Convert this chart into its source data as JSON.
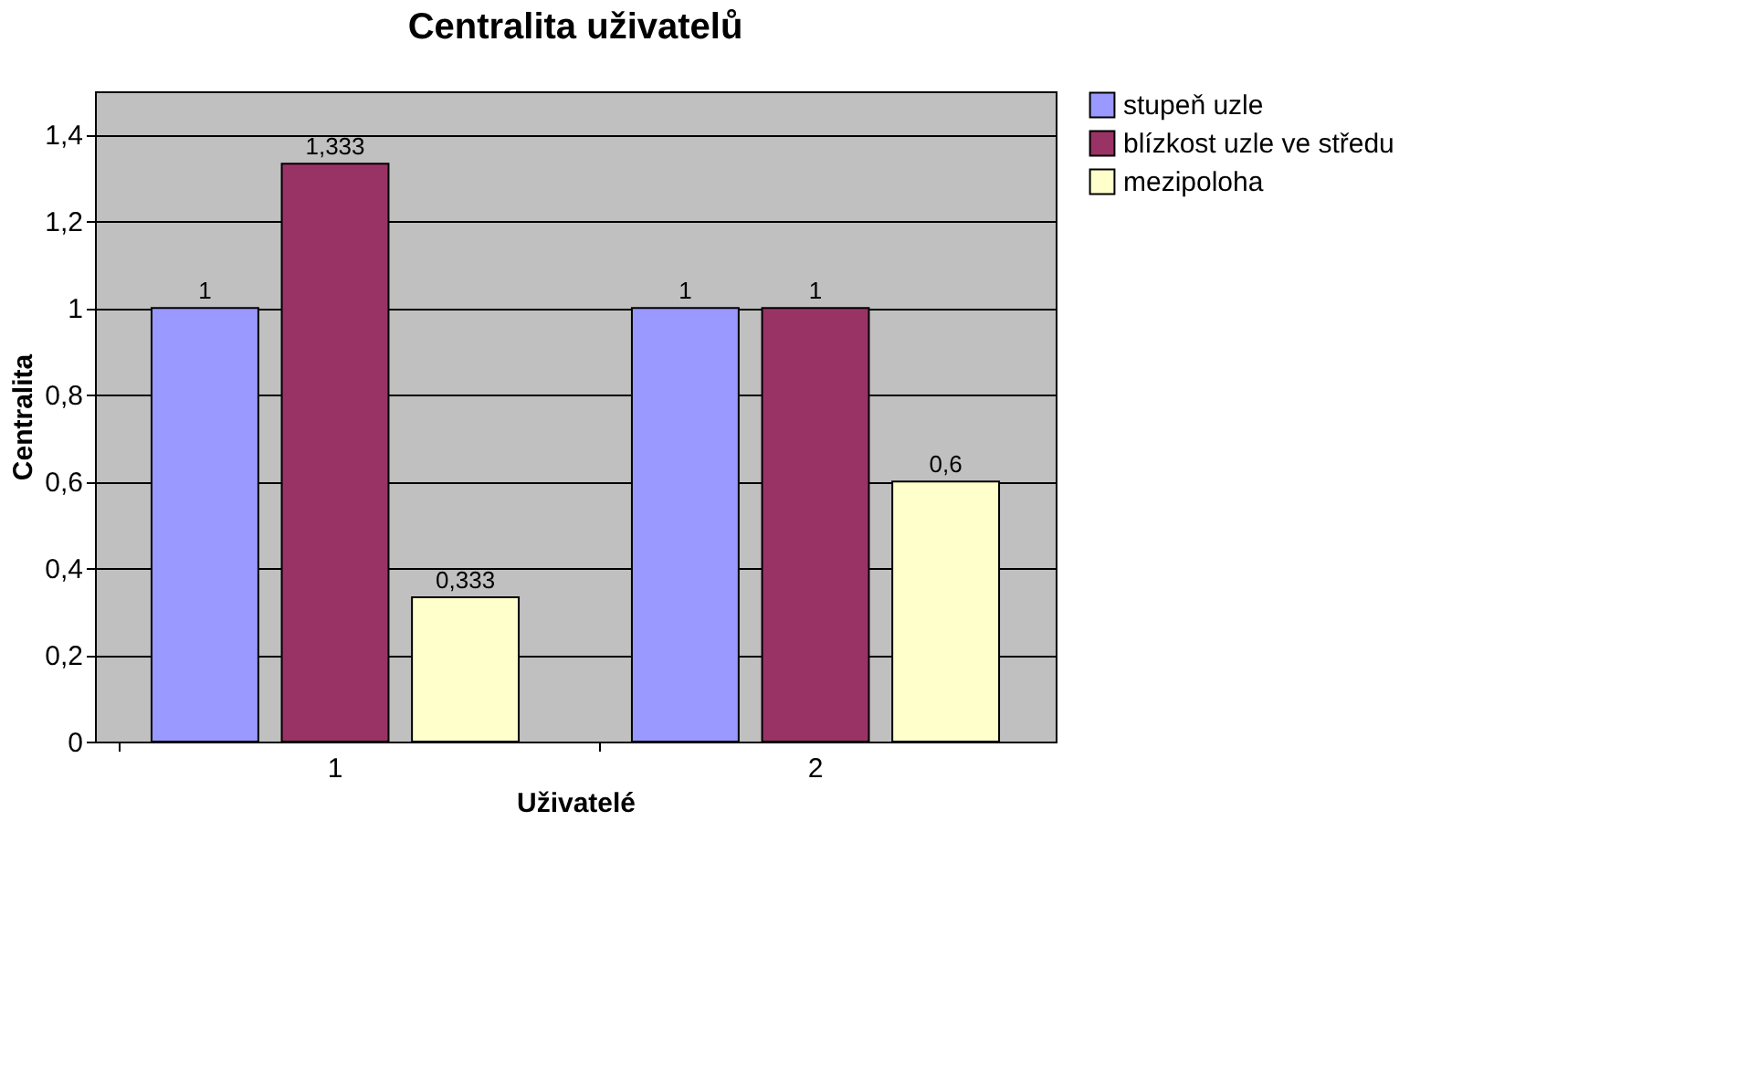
{
  "chart_data": {
    "type": "bar",
    "title": "Centralita uživatelů",
    "xlabel": "Uživatelé",
    "ylabel": "Centralita",
    "categories": [
      "1",
      "2"
    ],
    "series": [
      {
        "name": "stupeň uzle",
        "color": "#9999ff",
        "values": [
          1,
          1
        ],
        "value_labels": [
          "1",
          "1"
        ]
      },
      {
        "name": "blízkost uzle ve středu",
        "color": "#993366",
        "values": [
          1.333,
          1
        ],
        "value_labels": [
          "1,333",
          "1"
        ]
      },
      {
        "name": "mezipoloha",
        "color": "#ffffcc",
        "values": [
          0.333,
          0.6
        ],
        "value_labels": [
          "0,333",
          "0,6"
        ]
      }
    ],
    "ylim": [
      0,
      1.5
    ],
    "yticks": [
      0,
      {
        "value": 0.2,
        "label": "0,2"
      },
      {
        "value": 0.4,
        "label": "0,4"
      },
      {
        "value": 0.6,
        "label": "0,6"
      },
      {
        "value": 0.8,
        "label": "0,8"
      },
      1,
      {
        "value": 1.2,
        "label": "1,2"
      },
      {
        "value": 1.4,
        "label": "1,4"
      }
    ],
    "grid": "y",
    "legend": "right"
  }
}
